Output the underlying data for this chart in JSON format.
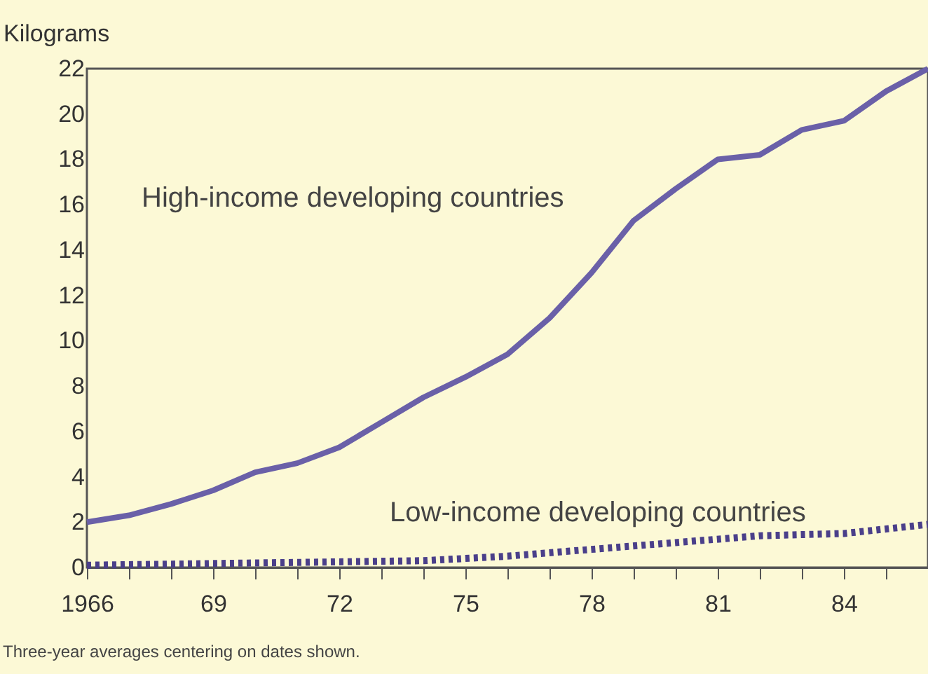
{
  "chart_data": {
    "type": "line",
    "ylabel": "Kilograms",
    "annotations": [
      "Three-year averages centering on dates shown."
    ],
    "xlim": [
      1966,
      1986
    ],
    "ylim": [
      0,
      22
    ],
    "yticks": [
      0,
      2,
      4,
      6,
      8,
      10,
      12,
      14,
      16,
      18,
      20,
      22
    ],
    "xticks": [
      {
        "value": 1966,
        "label": "1966"
      },
      {
        "value": 1967,
        "label": null
      },
      {
        "value": 1968,
        "label": null
      },
      {
        "value": 1969,
        "label": "69"
      },
      {
        "value": 1970,
        "label": null
      },
      {
        "value": 1971,
        "label": null
      },
      {
        "value": 1972,
        "label": "72"
      },
      {
        "value": 1973,
        "label": null
      },
      {
        "value": 1974,
        "label": null
      },
      {
        "value": 1975,
        "label": "75"
      },
      {
        "value": 1976,
        "label": null
      },
      {
        "value": 1977,
        "label": null
      },
      {
        "value": 1978,
        "label": "78"
      },
      {
        "value": 1979,
        "label": null
      },
      {
        "value": 1980,
        "label": null
      },
      {
        "value": 1981,
        "label": "81"
      },
      {
        "value": 1982,
        "label": null
      },
      {
        "value": 1983,
        "label": null
      },
      {
        "value": 1984,
        "label": "84"
      },
      {
        "value": 1985,
        "label": null
      }
    ],
    "grid": false,
    "series": [
      {
        "name": "High-income developing countries",
        "color": "#6a60a8",
        "line_style": "solid",
        "x": [
          1966,
          1967,
          1968,
          1969,
          1970,
          1971,
          1972,
          1973,
          1974,
          1975,
          1976,
          1977,
          1978,
          1979,
          1980,
          1981,
          1982,
          1983,
          1984,
          1985,
          1986
        ],
        "values": [
          2.0,
          2.3,
          2.8,
          3.4,
          4.2,
          4.6,
          5.3,
          6.4,
          7.5,
          8.4,
          9.4,
          11.0,
          13.0,
          15.3,
          16.7,
          18.0,
          18.2,
          19.3,
          19.7,
          21.0,
          22.0
        ]
      },
      {
        "name": "Low-income developing countries",
        "color": "#4a3f8a",
        "line_style": "dotted",
        "x": [
          1966,
          1968,
          1970,
          1972,
          1974,
          1976,
          1978,
          1980,
          1982,
          1984,
          1986
        ],
        "values": [
          0.1,
          0.15,
          0.2,
          0.25,
          0.3,
          0.5,
          0.8,
          1.1,
          1.4,
          1.5,
          1.9
        ]
      }
    ]
  }
}
